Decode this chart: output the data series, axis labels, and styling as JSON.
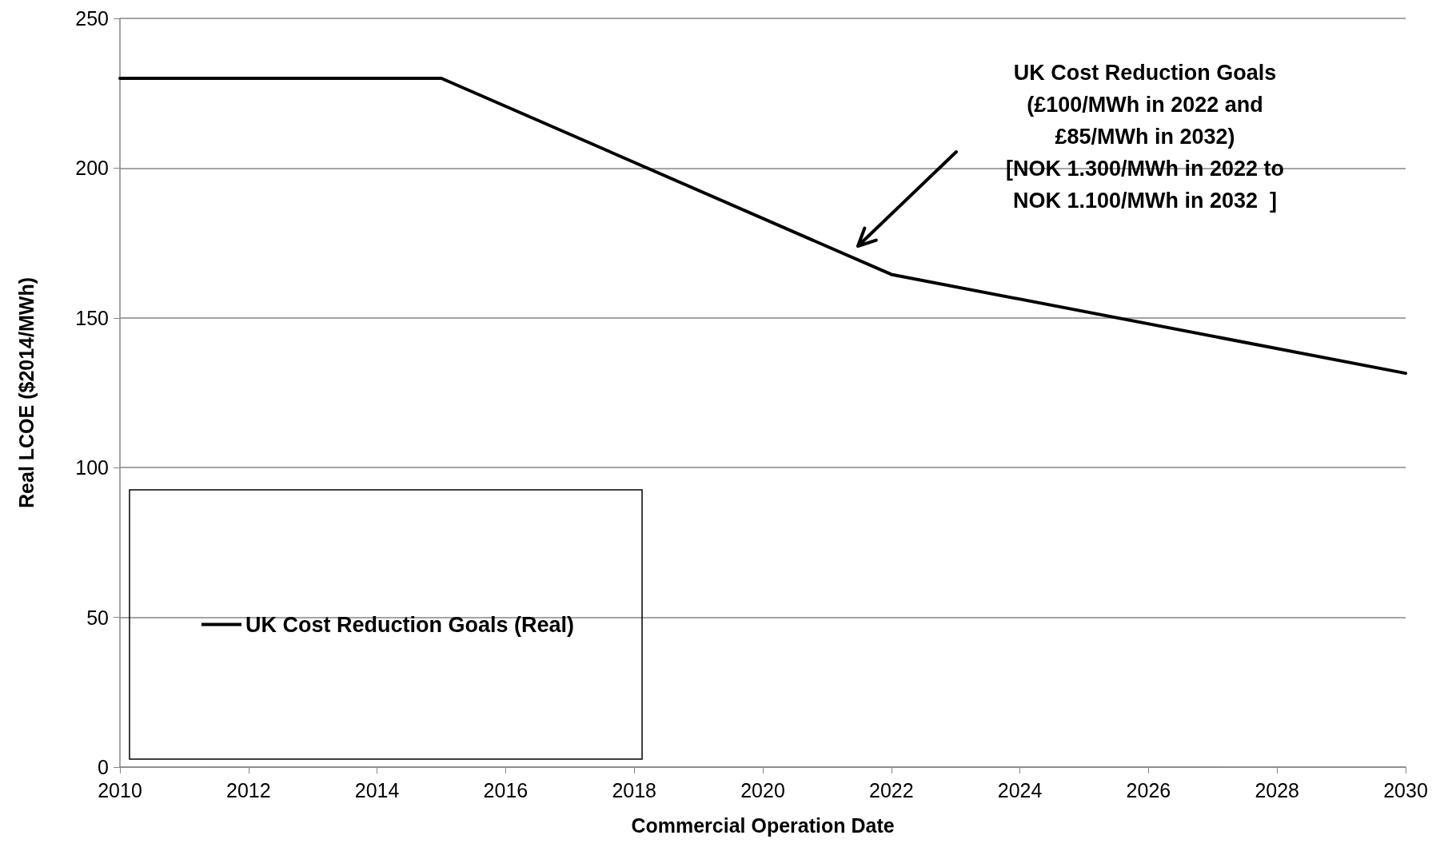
{
  "chart_data": {
    "type": "line",
    "xlabel": "Commercial Operation Date",
    "ylabel": "Real LCOE ($2014/MWh)",
    "series": [
      {
        "name": "UK Cost Reduction Goals (Real)",
        "color": "#000000",
        "x": [
          2010,
          2015,
          2022,
          2030
        ],
        "values": [
          230,
          230,
          164.5,
          131.5
        ]
      }
    ],
    "xlim": [
      2010,
      2030
    ],
    "xticks": [
      2010,
      2012,
      2014,
      2016,
      2018,
      2020,
      2022,
      2024,
      2026,
      2028,
      2030
    ],
    "ylim": [
      0,
      250
    ],
    "yticks": [
      0,
      50,
      100,
      150,
      200,
      250
    ],
    "grid": "y",
    "legend": "bottom left",
    "marker": "none",
    "line_style": "solid",
    "annotations": [
      "UK Cost Reduction Goals\n(£100/MWh in 2022 and\n£85/MWh in 2032)\n[NOK 1.300/MWh in 2022 to\nNOK 1.100/MWh in 2032  ]"
    ]
  }
}
